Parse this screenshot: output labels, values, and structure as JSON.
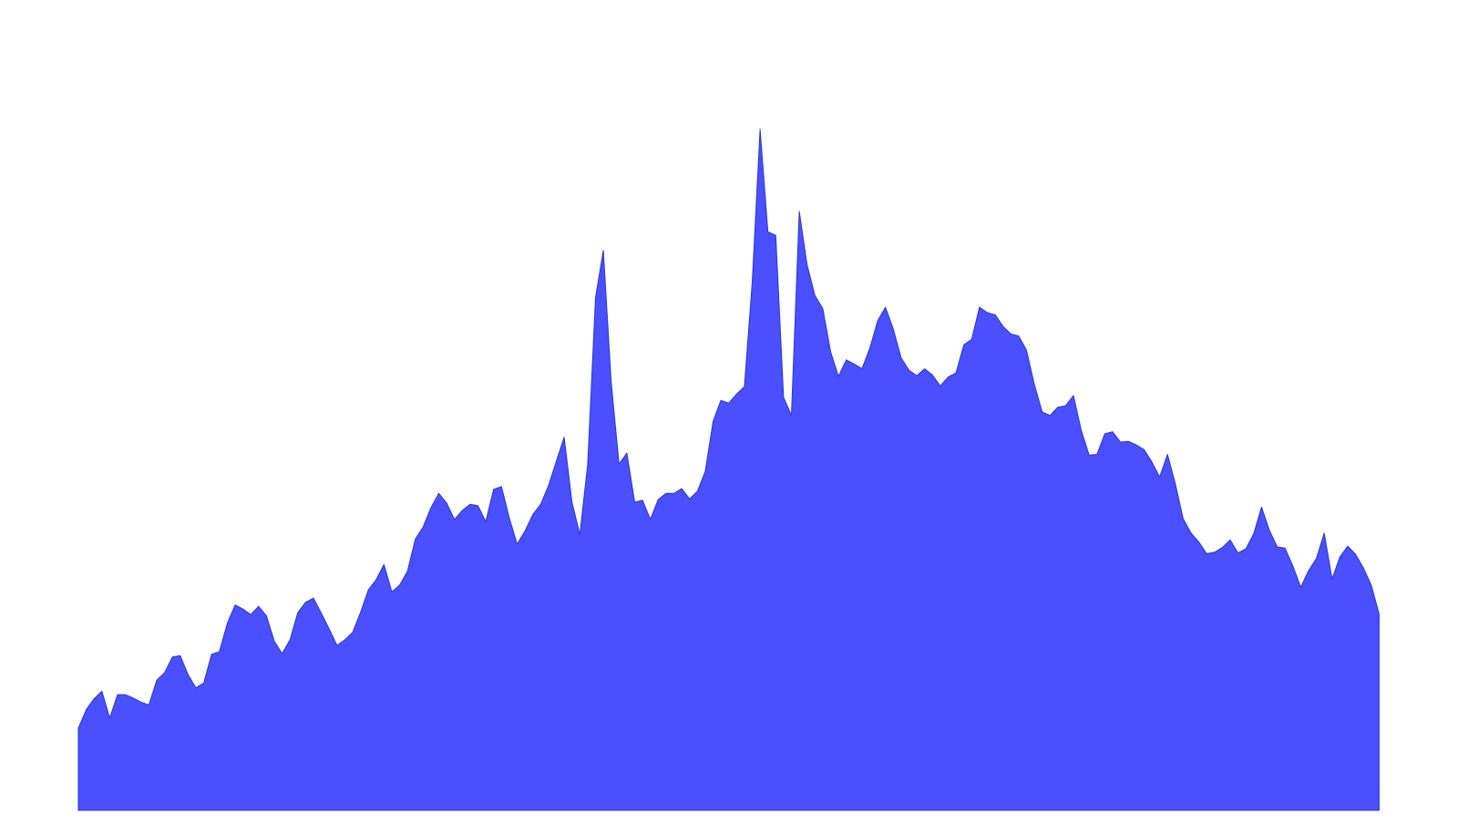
{
  "chart_data": {
    "type": "area",
    "title": "",
    "xlabel": "",
    "ylabel": "",
    "grid": false,
    "axes_visible": false,
    "legend": "none",
    "xlim": [
      0,
      167
    ],
    "ylim": [
      0,
      100
    ],
    "fill_color": "#4a4fff",
    "line_color": "#2a39c8",
    "series": [
      {
        "values": [
          12.0,
          14.7,
          16.3,
          17.4,
          13.5,
          16.9,
          16.9,
          16.4,
          15.8,
          15.4,
          19.0,
          20.1,
          22.4,
          22.6,
          19.8,
          17.9,
          18.6,
          22.8,
          23.2,
          27.3,
          30.0,
          29.4,
          28.6,
          29.8,
          28.4,
          24.7,
          22.9,
          24.9,
          28.9,
          30.4,
          31.0,
          28.8,
          26.5,
          24.1,
          24.9,
          26.0,
          28.9,
          32.2,
          33.7,
          35.9,
          31.9,
          32.9,
          34.9,
          39.6,
          41.4,
          44.2,
          46.3,
          44.9,
          42.5,
          43.8,
          44.7,
          44.5,
          42.2,
          46.9,
          47.3,
          42.7,
          38.9,
          40.8,
          43.2,
          44.7,
          47.4,
          51.0,
          54.5,
          45.0,
          40.3,
          50.5,
          74.9,
          81.8,
          62.6,
          50.6,
          52.2,
          45.0,
          45.3,
          42.5,
          45.4,
          46.3,
          46.3,
          47.0,
          45.5,
          46.6,
          49.5,
          56.8,
          59.9,
          59.5,
          60.8,
          61.9,
          77.2,
          99.5,
          84.5,
          84.0,
          60.3,
          57.7,
          87.5,
          79.7,
          75.2,
          73.3,
          67.0,
          63.4,
          65.8,
          65.2,
          64.5,
          67.5,
          71.5,
          73.5,
          70.3,
          66.1,
          64.3,
          63.5,
          64.5,
          63.6,
          62.0,
          63.3,
          63.9,
          68.0,
          68.8,
          73.5,
          72.7,
          72.4,
          70.7,
          69.6,
          69.3,
          67.2,
          62.2,
          58.2,
          57.7,
          58.9,
          59.1,
          60.6,
          55.5,
          51.9,
          52.0,
          55.0,
          55.3,
          53.8,
          53.9,
          53.4,
          52.7,
          50.9,
          48.7,
          52.0,
          47.7,
          42.6,
          40.5,
          39.2,
          37.5,
          37.7,
          38.4,
          39.5,
          37.6,
          38.2,
          40.4,
          44.3,
          40.9,
          38.5,
          38.3,
          35.7,
          32.6,
          35.0,
          36.8,
          40.5,
          33.8,
          37.0,
          38.6,
          37.4,
          35.4,
          32.9,
          28.7
        ]
      }
    ]
  }
}
